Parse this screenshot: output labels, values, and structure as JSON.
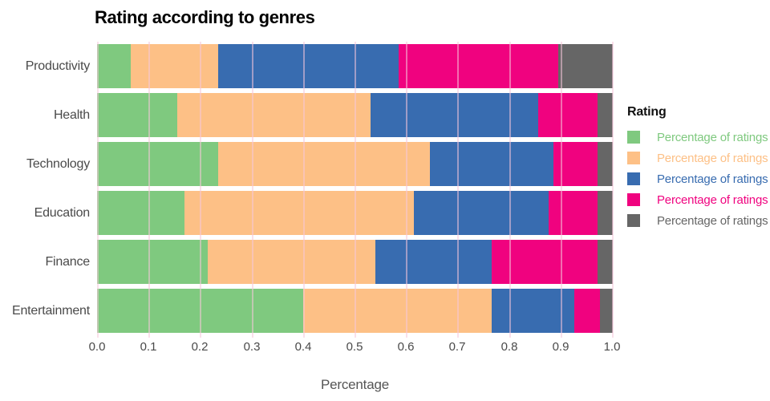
{
  "title": "Rating according to genres",
  "x_axis": {
    "label": "Percentage",
    "ticks": [
      "0.0",
      "0.1",
      "0.2",
      "0.3",
      "0.4",
      "0.5",
      "0.6",
      "0.7",
      "0.8",
      "0.9",
      "1.0"
    ],
    "range": [
      0,
      1
    ]
  },
  "legend": {
    "title": "Rating",
    "items": [
      {
        "label": "Percentage of ratings be",
        "color": "#7fc97f"
      },
      {
        "label": "Percentage of ratings be",
        "color": "#fdc086"
      },
      {
        "label": "Percentage of ratings be",
        "color": "#386cb0"
      },
      {
        "label": "Percentage of ratings be",
        "color": "#f0027f"
      },
      {
        "label": "Percentage of ratings ab",
        "color": "#666666"
      }
    ]
  },
  "colors": {
    "grid": "rgba(246,198,219,0.55)",
    "axis_text": "#4a4a4a",
    "title_text": "#000000"
  },
  "chart_data": {
    "type": "bar",
    "orientation": "horizontal",
    "stacked": true,
    "title": "Rating according to genres",
    "xlabel": "Percentage",
    "xlim": [
      0,
      1
    ],
    "grid": true,
    "legend_position": "right",
    "legend_title": "Rating",
    "categories": [
      "Productivity",
      "Health",
      "Technology",
      "Education",
      "Finance",
      "Entertainment"
    ],
    "series": [
      {
        "name": "Percentage of ratings be",
        "color": "#7fc97f",
        "values": [
          0.065,
          0.155,
          0.235,
          0.17,
          0.215,
          0.4
        ]
      },
      {
        "name": "Percentage of ratings be",
        "color": "#fdc086",
        "values": [
          0.17,
          0.375,
          0.41,
          0.445,
          0.325,
          0.365
        ]
      },
      {
        "name": "Percentage of ratings be",
        "color": "#386cb0",
        "values": [
          0.35,
          0.325,
          0.24,
          0.26,
          0.225,
          0.16
        ]
      },
      {
        "name": "Percentage of ratings be",
        "color": "#f0027f",
        "values": [
          0.31,
          0.115,
          0.085,
          0.095,
          0.205,
          0.05
        ]
      },
      {
        "name": "Percentage of ratings ab",
        "color": "#666666",
        "values": [
          0.105,
          0.03,
          0.03,
          0.03,
          0.03,
          0.025
        ]
      }
    ]
  }
}
